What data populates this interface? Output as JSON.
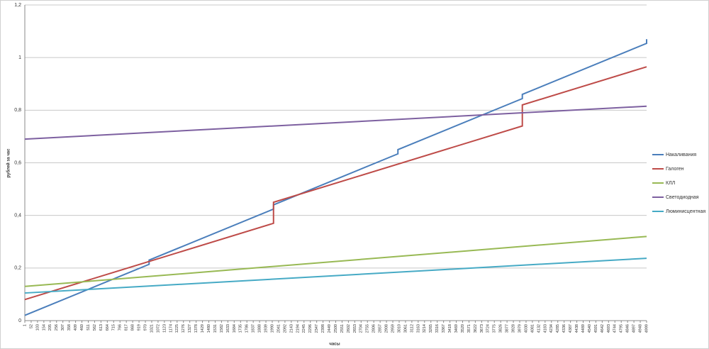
{
  "chart_data": {
    "type": "line",
    "y_label": "рублей за час",
    "x_label": "часы",
    "xlim": [
      1,
      4999
    ],
    "ylim": [
      0,
      1.2
    ],
    "yticks": [
      0,
      {
        "value": 0.2,
        "label": "0,2"
      },
      {
        "value": 0.4,
        "label": "0,4"
      },
      {
        "value": 0.6,
        "label": "0,6"
      },
      {
        "value": 0.8,
        "label": "0,8"
      },
      1,
      {
        "value": 1.2,
        "label": "1,2"
      }
    ],
    "xticks": [
      1,
      52,
      103,
      154,
      205,
      256,
      307,
      358,
      409,
      460,
      511,
      562,
      613,
      664,
      715,
      766,
      817,
      868,
      919,
      970,
      1021,
      1072,
      1123,
      1174,
      1225,
      1276,
      1327,
      1378,
      1429,
      1480,
      1531,
      1582,
      1633,
      1684,
      1735,
      1786,
      1837,
      1888,
      1939,
      1990,
      2041,
      2092,
      2143,
      2194,
      2245,
      2296,
      2347,
      2398,
      2449,
      2500,
      2551,
      2602,
      2653,
      2704,
      2755,
      2806,
      2857,
      2908,
      2959,
      3010,
      3061,
      3112,
      3163,
      3214,
      3265,
      3316,
      3367,
      3418,
      3469,
      3520,
      3571,
      3622,
      3673,
      3724,
      3775,
      3826,
      3877,
      3928,
      3979,
      4030,
      4081,
      4132,
      4183,
      4234,
      4285,
      4336,
      4387,
      4438,
      4489,
      4540,
      4591,
      4642,
      4693,
      4744,
      4795,
      4846,
      4897,
      4948,
      4999
    ],
    "grid": true,
    "legend": "right",
    "series": [
      {
        "name": "Накаливания",
        "color": "#4a7ebb",
        "x": [
          1,
          1000,
          1000,
          2000,
          2000,
          3000,
          3000,
          4000,
          4000,
          4999,
          4999
        ],
        "values": [
          0.02,
          0.214,
          0.23,
          0.424,
          0.44,
          0.634,
          0.65,
          0.844,
          0.86,
          1.054,
          1.07
        ]
      },
      {
        "name": "Галоген",
        "color": "#be4b48",
        "x": [
          1,
          2000,
          2000,
          4000,
          4000,
          4999
        ],
        "values": [
          0.08,
          0.37,
          0.45,
          0.74,
          0.82,
          0.965
        ]
      },
      {
        "name": "КЛЛ",
        "color": "#98b954",
        "x": [
          1,
          4999
        ],
        "values": [
          0.13,
          0.32
        ]
      },
      {
        "name": "Светодиодная",
        "color": "#7d60a0",
        "x": [
          1,
          4999
        ],
        "values": [
          0.69,
          0.815
        ]
      },
      {
        "name": "Люминисцентная",
        "color": "#46aac5",
        "x": [
          1,
          4999
        ],
        "values": [
          0.105,
          0.237
        ]
      }
    ]
  }
}
